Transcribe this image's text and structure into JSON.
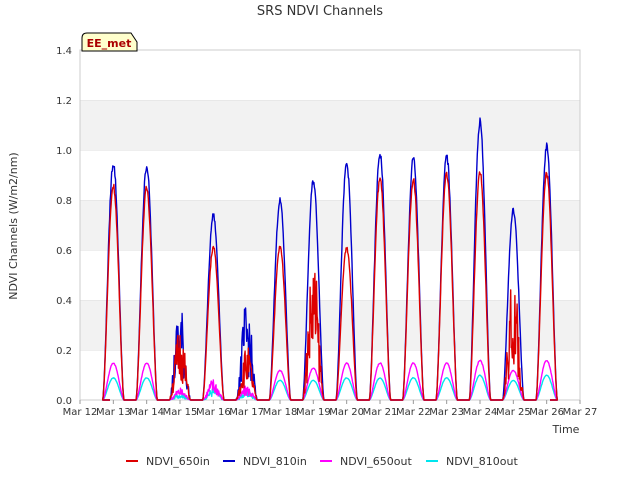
{
  "chart_data": {
    "type": "line",
    "title": "SRS NDVI Channels",
    "xlabel": "Time",
    "ylabel": "NDVI Channels (W/m2/nm)",
    "badge": "EE_met",
    "ylim": [
      0,
      1.4
    ],
    "yticks": [
      "0.0",
      "0.2",
      "0.4",
      "0.6",
      "0.8",
      "1.0",
      "1.2",
      "1.4"
    ],
    "xlim_days": [
      12,
      27
    ],
    "xticks": [
      "Mar 12",
      "Mar 13",
      "Mar 14",
      "Mar 15",
      "Mar 16",
      "Mar 17",
      "Mar 18",
      "Mar 19",
      "Mar 20",
      "Mar 21",
      "Mar 22",
      "Mar 23",
      "Mar 24",
      "Mar 25",
      "Mar 26",
      "Mar 27"
    ],
    "grid": "horizontal bands",
    "legend_position": "bottom",
    "colors": {
      "NDVI_650in": "#dd0000",
      "NDVI_810in": "#0000cc",
      "NDVI_650out": "#ff00ff",
      "NDVI_810out": "#00e5ee"
    },
    "series": [
      {
        "name": "NDVI_650in",
        "daily_peak": [
          0.87,
          0.86,
          0.3,
          0.62,
          0.22,
          0.62,
          0.58,
          0.62,
          0.9,
          0.89,
          0.92,
          0.92,
          0.5,
          0.92
        ]
      },
      {
        "name": "NDVI_810in",
        "daily_peak": [
          0.96,
          0.95,
          0.39,
          0.75,
          0.4,
          0.81,
          0.89,
          0.96,
          1.0,
          0.98,
          0.99,
          1.13,
          0.77,
          1.03
        ]
      },
      {
        "name": "NDVI_650out",
        "daily_peak": [
          0.15,
          0.15,
          0.05,
          0.09,
          0.06,
          0.12,
          0.13,
          0.15,
          0.15,
          0.15,
          0.15,
          0.16,
          0.12,
          0.16
        ]
      },
      {
        "name": "NDVI_810out",
        "daily_peak": [
          0.09,
          0.09,
          0.03,
          0.05,
          0.04,
          0.08,
          0.08,
          0.09,
          0.09,
          0.09,
          0.09,
          0.1,
          0.08,
          0.1
        ]
      }
    ],
    "days_with_data": [
      "Mar 13",
      "Mar 14",
      "Mar 15",
      "Mar 16",
      "Mar 17",
      "Mar 18",
      "Mar 19",
      "Mar 20",
      "Mar 21",
      "Mar 22",
      "Mar 23",
      "Mar 24",
      "Mar 25",
      "Mar 26"
    ]
  }
}
